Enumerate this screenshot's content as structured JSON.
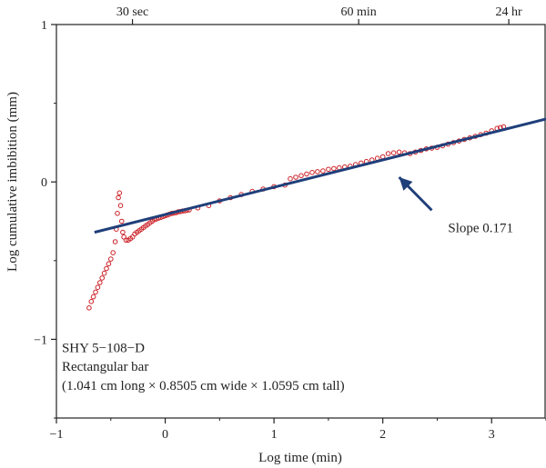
{
  "chart_data": {
    "type": "scatter",
    "xlabel": "Log time (min)",
    "ylabel": "Log cumulative imbibition (mm)",
    "xlim": [
      -1,
      3.5
    ],
    "ylim": [
      -1.5,
      1
    ],
    "x_ticks": [
      -1,
      0,
      1,
      2,
      3
    ],
    "y_ticks": [
      -1,
      0,
      1
    ],
    "x_tick_labels": [
      "−1",
      "0",
      "1",
      "2",
      "3"
    ],
    "y_tick_labels": [
      "−1",
      "0",
      "1"
    ],
    "top_axis": {
      "labels": [
        "30 sec",
        "60 min",
        "24 hr"
      ],
      "positions": [
        -0.301,
        1.778,
        3.158
      ]
    },
    "grid": false,
    "series": [
      {
        "kind": "measured",
        "color": "#cc2127",
        "points": [
          [
            -0.7,
            -0.8
          ],
          [
            -0.68,
            -0.76
          ],
          [
            -0.66,
            -0.73
          ],
          [
            -0.64,
            -0.7
          ],
          [
            -0.62,
            -0.67
          ],
          [
            -0.6,
            -0.64
          ],
          [
            -0.58,
            -0.61
          ],
          [
            -0.56,
            -0.58
          ],
          [
            -0.54,
            -0.55
          ],
          [
            -0.52,
            -0.52
          ],
          [
            -0.5,
            -0.49
          ],
          [
            -0.48,
            -0.45
          ],
          [
            -0.46,
            -0.38
          ],
          [
            -0.45,
            -0.3
          ],
          [
            -0.44,
            -0.2
          ],
          [
            -0.43,
            -0.1
          ],
          [
            -0.42,
            -0.07
          ],
          [
            -0.41,
            -0.15
          ],
          [
            -0.4,
            -0.25
          ],
          [
            -0.39,
            -0.32
          ],
          [
            -0.38,
            -0.35
          ],
          [
            -0.36,
            -0.37
          ],
          [
            -0.34,
            -0.37
          ],
          [
            -0.32,
            -0.36
          ],
          [
            -0.3,
            -0.35
          ],
          [
            -0.28,
            -0.33
          ],
          [
            -0.26,
            -0.32
          ],
          [
            -0.24,
            -0.31
          ],
          [
            -0.22,
            -0.3
          ],
          [
            -0.2,
            -0.29
          ],
          [
            -0.18,
            -0.28
          ],
          [
            -0.16,
            -0.27
          ],
          [
            -0.14,
            -0.26
          ],
          [
            -0.12,
            -0.25
          ],
          [
            -0.1,
            -0.24
          ],
          [
            -0.08,
            -0.235
          ],
          [
            -0.06,
            -0.23
          ],
          [
            -0.04,
            -0.225
          ],
          [
            -0.02,
            -0.22
          ],
          [
            0.0,
            -0.215
          ],
          [
            0.02,
            -0.21
          ],
          [
            0.04,
            -0.205
          ],
          [
            0.06,
            -0.2
          ],
          [
            0.08,
            -0.198
          ],
          [
            0.1,
            -0.195
          ],
          [
            0.12,
            -0.19
          ],
          [
            0.14,
            -0.188
          ],
          [
            0.16,
            -0.185
          ],
          [
            0.18,
            -0.183
          ],
          [
            0.2,
            -0.18
          ],
          [
            0.22,
            -0.178
          ],
          [
            0.3,
            -0.165
          ],
          [
            0.4,
            -0.15
          ],
          [
            0.5,
            -0.12
          ],
          [
            0.6,
            -0.1
          ],
          [
            0.7,
            -0.08
          ],
          [
            0.8,
            -0.06
          ],
          [
            0.9,
            -0.045
          ],
          [
            1.0,
            -0.03
          ],
          [
            1.1,
            -0.02
          ],
          [
            1.15,
            0.02
          ],
          [
            1.2,
            0.03
          ],
          [
            1.25,
            0.04
          ],
          [
            1.3,
            0.05
          ],
          [
            1.35,
            0.06
          ],
          [
            1.4,
            0.065
          ],
          [
            1.45,
            0.07
          ],
          [
            1.5,
            0.08
          ],
          [
            1.55,
            0.085
          ],
          [
            1.6,
            0.09
          ],
          [
            1.65,
            0.095
          ],
          [
            1.7,
            0.1
          ],
          [
            1.75,
            0.11
          ],
          [
            1.8,
            0.12
          ],
          [
            1.85,
            0.13
          ],
          [
            1.9,
            0.14
          ],
          [
            1.95,
            0.15
          ],
          [
            2.0,
            0.16
          ],
          [
            2.05,
            0.18
          ],
          [
            2.1,
            0.185
          ],
          [
            2.15,
            0.19
          ],
          [
            2.2,
            0.185
          ],
          [
            2.25,
            0.18
          ],
          [
            2.3,
            0.19
          ],
          [
            2.35,
            0.2
          ],
          [
            2.4,
            0.21
          ],
          [
            2.45,
            0.215
          ],
          [
            2.5,
            0.22
          ],
          [
            2.55,
            0.23
          ],
          [
            2.6,
            0.24
          ],
          [
            2.65,
            0.25
          ],
          [
            2.7,
            0.26
          ],
          [
            2.75,
            0.27
          ],
          [
            2.8,
            0.28
          ],
          [
            2.85,
            0.29
          ],
          [
            2.9,
            0.3
          ],
          [
            2.95,
            0.31
          ],
          [
            3.0,
            0.325
          ],
          [
            3.05,
            0.34
          ],
          [
            3.08,
            0.345
          ],
          [
            3.11,
            0.35
          ]
        ]
      },
      {
        "kind": "fit",
        "color": "#1f3f7a",
        "x": [
          -0.65,
          3.5
        ],
        "y": [
          -0.32,
          0.4
        ]
      }
    ],
    "annotations": [
      {
        "text": "Slope 0.171",
        "x": 2.6,
        "y": -0.32
      },
      {
        "text": "SHY 5−108−D",
        "x": -0.95,
        "y": -1.08
      },
      {
        "text": "Rectangular bar",
        "x": -0.95,
        "y": -1.2
      },
      {
        "text": "(1.041 cm long × 0.8505 cm wide × 1.0595 cm tall)",
        "x": -0.95,
        "y": -1.32
      }
    ],
    "arrow": {
      "from": [
        2.45,
        -0.18
      ],
      "to": [
        2.15,
        0.03
      ]
    }
  }
}
